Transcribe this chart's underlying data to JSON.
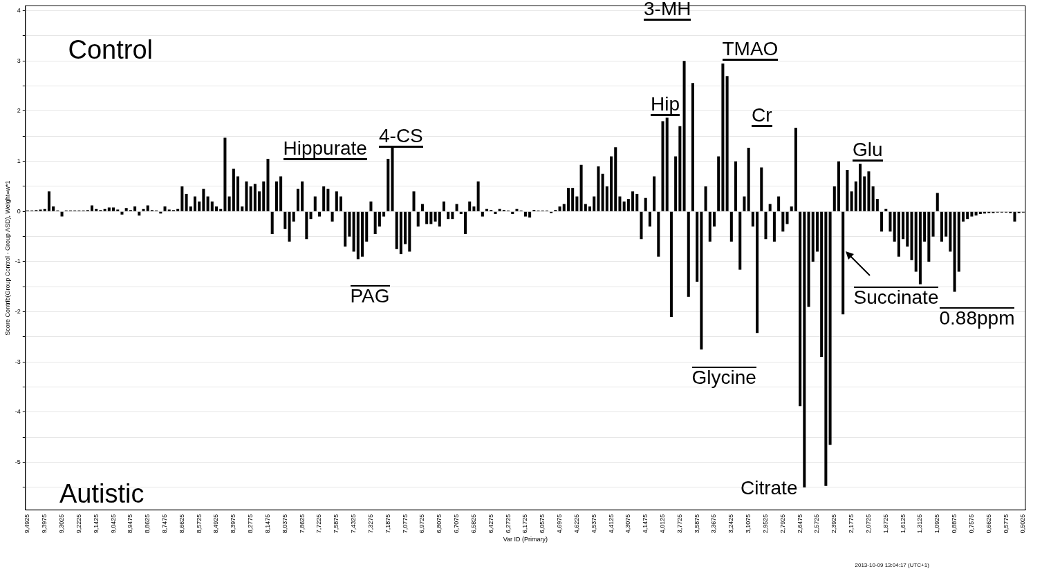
{
  "chart_data": {
    "type": "bar",
    "xlabel": "Var ID (Primary)",
    "ylabel": "Score Contrib(Group Control - Group ASD), Weight=w*1",
    "color": "#000000",
    "ylim": [
      -5.95,
      4.1
    ],
    "yticks": [
      {
        "value": -5.5,
        "label": null
      },
      -5,
      {
        "value": -4.5,
        "label": null
      },
      -4,
      {
        "value": -3.5,
        "label": null
      },
      -3,
      {
        "value": -2.5,
        "label": null
      },
      -2,
      {
        "value": -1.5,
        "label": null
      },
      -1,
      {
        "value": -0.5,
        "label": null
      },
      0,
      {
        "value": 0.5,
        "label": null
      },
      1,
      {
        "value": 1.5,
        "label": null
      },
      2,
      {
        "value": 2.5,
        "label": null
      },
      3,
      {
        "value": 3.5,
        "label": null
      },
      4
    ],
    "grid": "y",
    "categories": [
      "9,4925",
      null,
      null,
      null,
      "9,3975",
      null,
      null,
      null,
      "9,3025",
      null,
      null,
      null,
      "9,2225",
      null,
      null,
      null,
      "9,1425",
      null,
      null,
      null,
      "9,0425",
      null,
      null,
      null,
      "8,9475",
      null,
      null,
      null,
      "8,8625",
      null,
      null,
      null,
      "8,7475",
      null,
      null,
      null,
      "8,6625",
      null,
      null,
      null,
      "8,5725",
      null,
      null,
      null,
      "8,4925",
      null,
      null,
      null,
      "8,3975",
      null,
      null,
      null,
      "8,2775",
      null,
      null,
      null,
      "8,1475",
      null,
      null,
      null,
      "8,0375",
      null,
      null,
      null,
      "7,8625",
      null,
      null,
      null,
      "7,7225",
      null,
      null,
      null,
      "7,5875",
      null,
      null,
      null,
      "7,4325",
      null,
      null,
      null,
      "7,3275",
      null,
      null,
      null,
      "7,1875",
      null,
      null,
      null,
      "7,0775",
      null,
      null,
      null,
      "6,9725",
      null,
      null,
      null,
      "6,8075",
      null,
      null,
      null,
      "6,7075",
      null,
      null,
      null,
      "6,5825",
      null,
      null,
      null,
      "6,4275",
      null,
      null,
      null,
      "6,2725",
      null,
      null,
      null,
      "6,1725",
      null,
      null,
      null,
      "6,0575",
      null,
      null,
      null,
      "4,6975",
      null,
      null,
      null,
      "4,6225",
      null,
      null,
      null,
      "4,5375",
      null,
      null,
      null,
      "4,4125",
      null,
      null,
      null,
      "4,3075",
      null,
      null,
      null,
      "4,1475",
      null,
      null,
      null,
      "4,0125",
      null,
      null,
      null,
      "3,7725",
      null,
      null,
      null,
      "3,5875",
      null,
      null,
      null,
      "3,3675",
      null,
      null,
      null,
      "3,2425",
      null,
      null,
      null,
      "3,1075",
      null,
      null,
      null,
      "2,9525",
      null,
      null,
      null,
      "2,7925",
      null,
      null,
      null,
      "2,6475",
      null,
      null,
      null,
      "2,5725",
      null,
      null,
      null,
      "2,3925",
      null,
      null,
      null,
      "2,1775",
      null,
      null,
      null,
      "2,0725",
      null,
      null,
      null,
      "1,8725",
      null,
      null,
      null,
      "1,6125",
      null,
      null,
      null,
      "1,3125",
      null,
      null,
      null,
      "1,0925",
      null,
      null,
      null,
      "0,8875",
      null,
      null,
      null,
      "0,7575",
      null,
      null,
      null,
      "0,6625",
      null,
      null,
      null,
      "0,5775",
      null,
      null,
      null,
      "0,5025"
    ],
    "values": [
      0.02,
      0.02,
      0.03,
      0.04,
      0.05,
      0.4,
      0.1,
      0.02,
      -0.1,
      0.02,
      0.02,
      0.02,
      0.02,
      0.02,
      0.03,
      0.12,
      0.05,
      0.03,
      0.05,
      0.08,
      0.08,
      0.04,
      -0.06,
      0.07,
      0.03,
      0.1,
      -0.08,
      0.05,
      0.12,
      0.03,
      0.02,
      -0.04,
      0.1,
      0.04,
      0.03,
      0.05,
      0.5,
      0.35,
      0.1,
      0.3,
      0.2,
      0.45,
      0.3,
      0.2,
      0.1,
      0.05,
      1.47,
      0.3,
      0.85,
      0.7,
      0.1,
      0.6,
      0.5,
      0.55,
      0.4,
      0.6,
      1.05,
      -0.45,
      0.6,
      0.7,
      -0.35,
      -0.6,
      -0.2,
      0.45,
      0.6,
      -0.55,
      -0.15,
      0.3,
      -0.1,
      0.5,
      0.45,
      -0.2,
      0.4,
      0.3,
      -0.7,
      -0.5,
      -0.8,
      -0.95,
      -0.9,
      -0.6,
      0.2,
      -0.45,
      -0.3,
      -0.1,
      1.05,
      1.3,
      -0.75,
      -0.85,
      -0.65,
      -0.8,
      0.4,
      -0.3,
      0.15,
      -0.25,
      -0.25,
      -0.2,
      -0.3,
      0.2,
      -0.15,
      -0.15,
      0.15,
      -0.05,
      -0.45,
      0.2,
      0.1,
      0.6,
      -0.1,
      0.05,
      0.03,
      -0.05,
      0.05,
      0.03,
      0.02,
      -0.05,
      0.05,
      0.02,
      -0.1,
      -0.12,
      0.03,
      0.02,
      0.02,
      0.02,
      -0.03,
      0.03,
      0.1,
      0.15,
      0.47,
      0.47,
      0.3,
      0.93,
      0.15,
      0.1,
      0.3,
      0.9,
      0.75,
      0.5,
      1.1,
      1.28,
      0.3,
      0.2,
      0.25,
      0.4,
      0.35,
      -0.55,
      0.27,
      -0.3,
      0.7,
      -0.9,
      1.8,
      1.87,
      -2.1,
      1.1,
      1.7,
      3.0,
      -1.7,
      2.56,
      -1.4,
      -2.75,
      0.5,
      -0.6,
      -0.3,
      1.1,
      2.95,
      2.7,
      -0.6,
      1.0,
      -1.16,
      0.3,
      1.27,
      -0.3,
      -2.42,
      0.88,
      -0.55,
      0.15,
      -0.6,
      0.3,
      -0.4,
      -0.25,
      0.1,
      1.67,
      -3.88,
      -5.5,
      -1.9,
      -1.0,
      -0.8,
      -2.9,
      -5.47,
      -4.65,
      0.5,
      1.0,
      -2.05,
      0.83,
      0.4,
      0.6,
      0.95,
      0.7,
      0.8,
      0.5,
      0.25,
      -0.4,
      0.05,
      -0.4,
      -0.6,
      -0.9,
      -0.55,
      -0.7,
      -0.97,
      -1.2,
      -1.45,
      -0.6,
      -1.0,
      -0.5,
      0.37,
      -0.6,
      -0.5,
      -0.8,
      -1.6,
      -1.2,
      -0.2,
      -0.15,
      -0.1,
      -0.08,
      -0.05,
      -0.04,
      -0.03,
      -0.03,
      -0.02,
      -0.02,
      -0.02,
      -0.03,
      -0.2,
      -0.03,
      -0.02
    ],
    "annotations": [
      "Control",
      "Autistic",
      "2013-10-09 13:04:17 (UTC+1)",
      "Hippurate",
      "4-CS",
      "PAG",
      "Hip",
      "3-MH",
      "TMAO",
      "Cr",
      "Glycine",
      "Citrate",
      "Glu",
      "Succinate",
      "0.88ppm"
    ]
  }
}
